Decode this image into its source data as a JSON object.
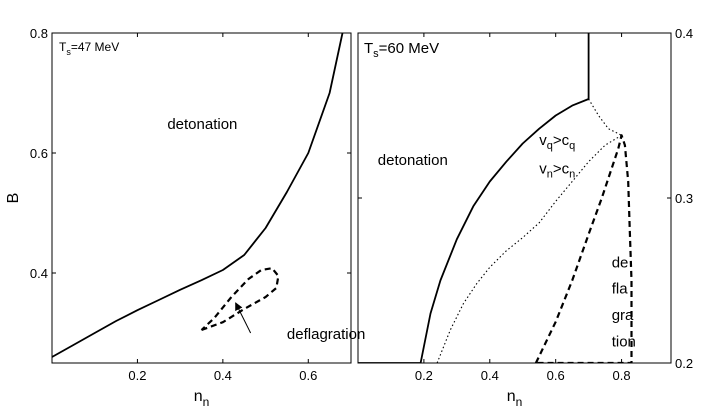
{
  "chart_data": [
    {
      "type": "line",
      "panel": "left",
      "title": "T_s=47 MeV",
      "title_parts": {
        "main": "T",
        "sub": "s",
        "rest": "=47 MeV"
      },
      "xlabel": {
        "main": "n",
        "sub": "n"
      },
      "ylabel": "B",
      "xlim": [
        0.0,
        0.7
      ],
      "ylim": [
        0.25,
        0.8
      ],
      "x_ticks": [
        0.2,
        0.4,
        0.6
      ],
      "x_tick_labels": [
        "0.2",
        "0.4",
        "0.6"
      ],
      "y_ticks": [
        0.4,
        0.6,
        0.8
      ],
      "y_tick_labels": [
        "0.4",
        "0.6",
        "0.8"
      ],
      "grid": false,
      "series": [
        {
          "name": "detonation boundary",
          "style": "solid",
          "x": [
            0.0,
            0.05,
            0.1,
            0.15,
            0.2,
            0.25,
            0.3,
            0.35,
            0.4,
            0.45,
            0.5,
            0.55,
            0.6,
            0.65,
            0.68
          ],
          "y": [
            0.26,
            0.28,
            0.3,
            0.32,
            0.338,
            0.355,
            0.372,
            0.388,
            0.405,
            0.43,
            0.475,
            0.535,
            0.6,
            0.7,
            0.8
          ]
        },
        {
          "name": "deflagration region",
          "style": "dashed",
          "x": [
            0.35,
            0.4,
            0.45,
            0.5,
            0.525,
            0.53,
            0.515,
            0.49,
            0.46,
            0.42,
            0.38,
            0.35
          ],
          "y": [
            0.305,
            0.318,
            0.34,
            0.36,
            0.375,
            0.395,
            0.408,
            0.405,
            0.39,
            0.36,
            0.325,
            0.305
          ]
        }
      ],
      "annotations": [
        {
          "text": "detonation",
          "x": 0.27,
          "y": 0.64
        },
        {
          "text": "deflagration",
          "x": 0.55,
          "y": 0.29
        }
      ],
      "arrow": {
        "from": [
          0.465,
          0.3
        ],
        "to": [
          0.43,
          0.35
        ]
      }
    },
    {
      "type": "line",
      "panel": "right",
      "title": "T_s=60 MeV",
      "title_parts": {
        "main": "T",
        "sub": "s",
        "rest": "=60 MeV"
      },
      "xlabel": {
        "main": "n",
        "sub": "n"
      },
      "ylabel": "",
      "xlim": [
        0.0,
        0.95
      ],
      "ylim": [
        0.2,
        0.4
      ],
      "x_ticks": [
        0.2,
        0.4,
        0.6,
        0.8
      ],
      "x_tick_labels": [
        "0.2",
        "0.4",
        "0.6",
        "0.8"
      ],
      "y_ticks": [
        0.2,
        0.3,
        0.4
      ],
      "y_tick_labels": [
        "0.2",
        "0.3",
        "0.4"
      ],
      "y_axis_side": "right",
      "grid": false,
      "series": [
        {
          "name": "detonation boundary",
          "style": "solid",
          "x": [
            0.0,
            0.19,
            0.2,
            0.22,
            0.25,
            0.3,
            0.35,
            0.4,
            0.45,
            0.5,
            0.55,
            0.6,
            0.65,
            0.7,
            0.7,
            0.7
          ],
          "y": [
            0.2,
            0.2,
            0.21,
            0.23,
            0.25,
            0.275,
            0.295,
            0.31,
            0.322,
            0.333,
            0.342,
            0.35,
            0.356,
            0.36,
            0.37,
            0.4
          ]
        },
        {
          "name": "sound speed boundary",
          "style": "dotted",
          "x": [
            0.24,
            0.28,
            0.32,
            0.36,
            0.4,
            0.45,
            0.5,
            0.55,
            0.6,
            0.65,
            0.7,
            0.75,
            0.8
          ],
          "y": [
            0.2,
            0.22,
            0.236,
            0.248,
            0.258,
            0.268,
            0.276,
            0.285,
            0.298,
            0.31,
            0.322,
            0.332,
            0.338
          ]
        },
        {
          "name": "upper dotted branch",
          "style": "dotted",
          "x": [
            0.7,
            0.73,
            0.76,
            0.8
          ],
          "y": [
            0.36,
            0.35,
            0.342,
            0.338
          ]
        },
        {
          "name": "deflagration region",
          "style": "dashed",
          "x": [
            0.54,
            0.6,
            0.65,
            0.7,
            0.74,
            0.77,
            0.79,
            0.8,
            0.81,
            0.82,
            0.825,
            0.83,
            0.83,
            0.54
          ],
          "y": [
            0.2,
            0.225,
            0.25,
            0.278,
            0.3,
            0.318,
            0.33,
            0.338,
            0.332,
            0.31,
            0.28,
            0.25,
            0.2,
            0.2
          ]
        }
      ],
      "annotations": [
        {
          "text": "detonation",
          "x": 0.06,
          "y": 0.32
        },
        {
          "text": "de",
          "x": 0.77,
          "y": 0.258
        },
        {
          "text": "fla",
          "x": 0.77,
          "y": 0.242
        },
        {
          "text": "gra",
          "x": 0.77,
          "y": 0.226
        },
        {
          "text": "tion",
          "x": 0.77,
          "y": 0.21
        }
      ],
      "inequalities": [
        {
          "a": "v",
          "a_sub": "q",
          "op": ">",
          "b": "c",
          "b_sub": "q",
          "x": 0.55,
          "y": 0.332
        },
        {
          "a": "v",
          "a_sub": "n",
          "op": ">",
          "b": "c",
          "b_sub": "n",
          "x": 0.55,
          "y": 0.315
        }
      ]
    }
  ]
}
